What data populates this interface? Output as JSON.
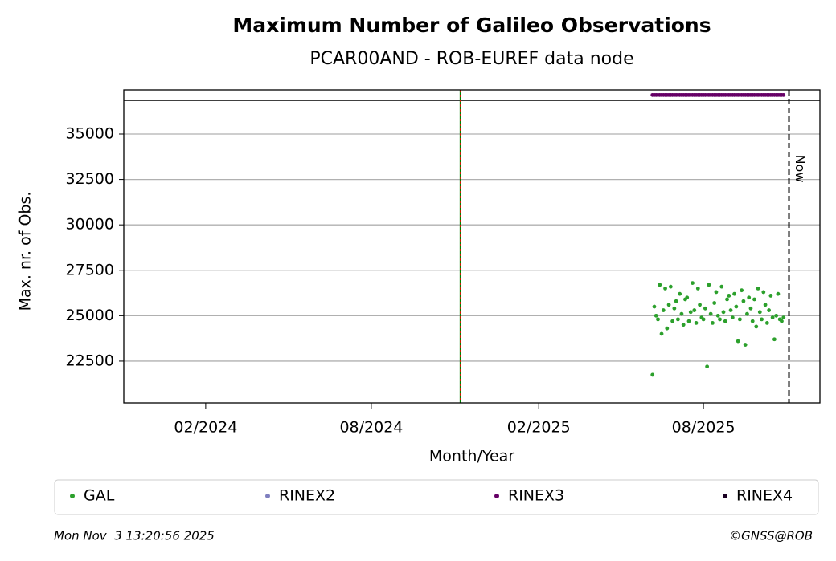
{
  "chart_data": {
    "type": "scatter",
    "title": "Maximum Number of Galileo Observations",
    "subtitle": "PCAR00AND - ROB-EUREF data node",
    "xlabel": "Month/Year",
    "ylabel": "Max. nr. of Obs.",
    "x": [
      "2025-06-06",
      "2025-06-08",
      "2025-06-10",
      "2025-06-12",
      "2025-06-14",
      "2025-06-16",
      "2025-06-18",
      "2025-06-20",
      "2025-06-22",
      "2025-06-24",
      "2025-06-26",
      "2025-06-28",
      "2025-06-30",
      "2025-07-02",
      "2025-07-04",
      "2025-07-06",
      "2025-07-08",
      "2025-07-10",
      "2025-07-12",
      "2025-07-14",
      "2025-07-16",
      "2025-07-18",
      "2025-07-20",
      "2025-07-22",
      "2025-07-24",
      "2025-07-26",
      "2025-07-28",
      "2025-07-30",
      "2025-08-01",
      "2025-08-03",
      "2025-08-05",
      "2025-08-07",
      "2025-08-09",
      "2025-08-11",
      "2025-08-13",
      "2025-08-15",
      "2025-08-17",
      "2025-08-19",
      "2025-08-21",
      "2025-08-23",
      "2025-08-25",
      "2025-08-27",
      "2025-08-29",
      "2025-08-31",
      "2025-09-02",
      "2025-09-04",
      "2025-09-06",
      "2025-09-08",
      "2025-09-10",
      "2025-09-12",
      "2025-09-14",
      "2025-09-16",
      "2025-09-18",
      "2025-09-20",
      "2025-09-22",
      "2025-09-24",
      "2025-09-26",
      "2025-09-28",
      "2025-09-30",
      "2025-10-02",
      "2025-10-04",
      "2025-10-06",
      "2025-10-08",
      "2025-10-10",
      "2025-10-12",
      "2025-10-14",
      "2025-10-16",
      "2025-10-18",
      "2025-10-20",
      "2025-10-22",
      "2025-10-24",
      "2025-10-26",
      "2025-10-28"
    ],
    "series": [
      {
        "name": "GAL",
        "color": "#2ca02c",
        "values": [
          21750,
          25500,
          25000,
          24800,
          26700,
          24000,
          25300,
          26500,
          24300,
          25600,
          26600,
          24700,
          25400,
          25800,
          24800,
          26200,
          25100,
          24500,
          25900,
          26000,
          24700,
          25200,
          26800,
          25300,
          24600,
          26500,
          25600,
          24900,
          24800,
          25400,
          22200,
          26700,
          25100,
          24600,
          25700,
          26300,
          25000,
          24800,
          26600,
          25200,
          24700,
          25900,
          26100,
          25300,
          24900,
          26200,
          25500,
          23600,
          24800,
          26400,
          25800,
          23400,
          25100,
          26000,
          25400,
          24700,
          25900,
          24400,
          26500,
          25200,
          24800,
          26300,
          25600,
          24600,
          25300,
          26100,
          24900,
          23700,
          25000,
          26200,
          24800,
          24700,
          24900
        ]
      },
      {
        "name": "RINEX2",
        "color": "#7f7fbf",
        "values": []
      },
      {
        "name": "RINEX3",
        "color": "#660066",
        "values": [
          37150,
          37150,
          37150,
          37150,
          37150,
          37150,
          37150,
          37150,
          37150,
          37150,
          37150,
          37150,
          37150,
          37150,
          37150,
          37150,
          37150,
          37150,
          37150,
          37150,
          37150,
          37150,
          37150,
          37150,
          37150,
          37150,
          37150,
          37150,
          37150,
          37150,
          37150,
          37150,
          37150,
          37150,
          37150,
          37150,
          37150,
          37150,
          37150,
          37150,
          37150,
          37150,
          37150,
          37150,
          37150,
          37150,
          37150,
          37150,
          37150,
          37150,
          37150,
          37150,
          37150,
          37150,
          37150,
          37150,
          37150,
          37150,
          37150,
          37150,
          37150,
          37150,
          37150,
          37150,
          37150,
          37150,
          37150,
          37150,
          37150,
          37150,
          37150,
          37150,
          37150
        ]
      },
      {
        "name": "RINEX4",
        "color": "#1a0022",
        "values": []
      }
    ],
    "xlim": [
      "2023-11-03",
      "2025-12-07"
    ],
    "xticks": [
      {
        "value": "2024-02-01",
        "label": "02/2024"
      },
      {
        "value": "2024-08-01",
        "label": "08/2024"
      },
      {
        "value": "2025-02-01",
        "label": "02/2025"
      },
      {
        "value": "2025-08-01",
        "label": "08/2025"
      }
    ],
    "ylim": [
      20200,
      37430
    ],
    "yticks": [
      22500,
      25000,
      27500,
      30000,
      32500,
      35000
    ],
    "grid": true,
    "hline": 36850,
    "vline": {
      "x": "2024-11-07",
      "colors": [
        "#008000",
        "#ff0000"
      ]
    },
    "now": {
      "x": "2025-11-03",
      "label": "Now"
    },
    "footer_left": "Mon Nov  3 13:20:56 2025",
    "footer_right": "©GNSS@ROB"
  }
}
